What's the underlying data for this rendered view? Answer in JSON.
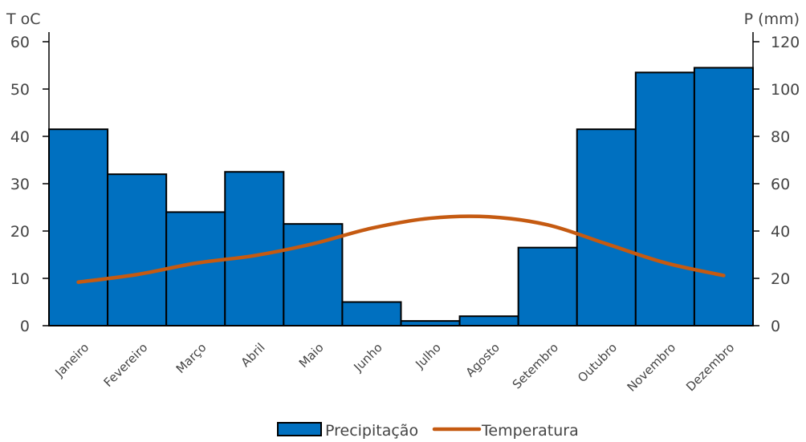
{
  "chart_data": {
    "type": "bar",
    "categories": [
      "Janeiro",
      "Fevereiro",
      "Março",
      "Abril",
      "Maio",
      "Junho",
      "Julho",
      "Agosto",
      "Setembro",
      "Outubro",
      "Novembro",
      "Dezembro"
    ],
    "series": [
      {
        "name": "Precipitação",
        "type": "bar",
        "axis": "right",
        "color": "#0070c0",
        "values": [
          83,
          64,
          48,
          65,
          43,
          10,
          2,
          4,
          33,
          83,
          107,
          109
        ]
      },
      {
        "name": "Temperatura",
        "type": "line",
        "axis": "left",
        "color": "#c55a11",
        "values": [
          9.2,
          10.8,
          13.2,
          14.8,
          17.3,
          20.6,
          22.7,
          23.0,
          21.3,
          17.3,
          13.3,
          10.6
        ]
      }
    ],
    "left_axis": {
      "title": "T oC",
      "ylim": [
        0,
        60
      ],
      "ticks": [
        "0",
        "10",
        "20",
        "30",
        "40",
        "50",
        "60"
      ]
    },
    "right_axis": {
      "title": "P (mm)",
      "ylim": [
        0,
        120
      ],
      "ticks": [
        "0",
        "20",
        "40",
        "60",
        "80",
        "100",
        "120"
      ]
    },
    "grid": false,
    "legend_position": "bottom"
  }
}
